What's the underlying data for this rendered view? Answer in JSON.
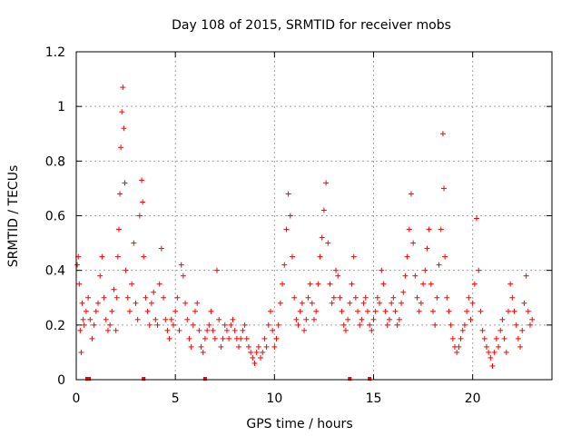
{
  "chart_data": {
    "type": "scatter",
    "title": "Day 108 of 2015, SRMTID for receiver mobs",
    "xlabel": "GPS time / hours",
    "ylabel": "SRMTID / TECUs",
    "xlim": [
      0,
      24
    ],
    "ylim": [
      0,
      1.2
    ],
    "x_ticks": [
      0,
      5,
      10,
      15,
      20
    ],
    "x_tick_labels": [
      "0",
      "5",
      "10",
      "15",
      "20"
    ],
    "y_ticks": [
      0,
      0.2,
      0.4,
      0.6,
      0.8,
      1.0,
      1.2
    ],
    "y_tick_labels": [
      "0",
      "0.2",
      "0.4",
      "0.6",
      "0.8",
      "1",
      "1.2"
    ],
    "grid": true,
    "marker": "+",
    "color": "#ff0000",
    "zero_markers": [
      0.55,
      0.65,
      3.4,
      6.5,
      13.8,
      14.8
    ],
    "series": [
      {
        "name": "SRMTID",
        "points": [
          [
            0.05,
            0.42
          ],
          [
            0.1,
            0.45
          ],
          [
            0.15,
            0.35
          ],
          [
            0.2,
            0.18
          ],
          [
            0.25,
            0.1
          ],
          [
            0.3,
            0.28
          ],
          [
            0.35,
            0.22
          ],
          [
            0.4,
            0.2
          ],
          [
            0.5,
            0.25
          ],
          [
            0.6,
            0.3
          ],
          [
            0.7,
            0.22
          ],
          [
            0.8,
            0.15
          ],
          [
            0.9,
            0.2
          ],
          [
            1.0,
            0.25
          ],
          [
            1.1,
            0.28
          ],
          [
            1.2,
            0.38
          ],
          [
            1.3,
            0.45
          ],
          [
            1.4,
            0.3
          ],
          [
            1.5,
            0.22
          ],
          [
            1.6,
            0.18
          ],
          [
            1.7,
            0.2
          ],
          [
            1.8,
            0.25
          ],
          [
            1.9,
            0.33
          ],
          [
            2.0,
            0.18
          ],
          [
            2.05,
            0.3
          ],
          [
            2.1,
            0.45
          ],
          [
            2.15,
            0.55
          ],
          [
            2.2,
            0.68
          ],
          [
            2.25,
            0.85
          ],
          [
            2.3,
            0.98
          ],
          [
            2.35,
            1.07
          ],
          [
            2.4,
            0.92
          ],
          [
            2.45,
            0.72
          ],
          [
            2.5,
            0.4
          ],
          [
            2.6,
            0.3
          ],
          [
            2.7,
            0.25
          ],
          [
            2.8,
            0.35
          ],
          [
            2.9,
            0.5
          ],
          [
            3.0,
            0.28
          ],
          [
            3.1,
            0.22
          ],
          [
            3.2,
            0.6
          ],
          [
            3.3,
            0.73
          ],
          [
            3.35,
            0.65
          ],
          [
            3.4,
            0.45
          ],
          [
            3.5,
            0.3
          ],
          [
            3.6,
            0.25
          ],
          [
            3.7,
            0.2
          ],
          [
            3.8,
            0.28
          ],
          [
            3.9,
            0.32
          ],
          [
            4.0,
            0.22
          ],
          [
            4.1,
            0.2
          ],
          [
            4.2,
            0.35
          ],
          [
            4.3,
            0.48
          ],
          [
            4.4,
            0.3
          ],
          [
            4.5,
            0.22
          ],
          [
            4.6,
            0.18
          ],
          [
            4.7,
            0.15
          ],
          [
            4.8,
            0.22
          ],
          [
            4.9,
            0.2
          ],
          [
            5.0,
            0.25
          ],
          [
            5.1,
            0.3
          ],
          [
            5.2,
            0.18
          ],
          [
            5.3,
            0.42
          ],
          [
            5.4,
            0.38
          ],
          [
            5.5,
            0.28
          ],
          [
            5.6,
            0.22
          ],
          [
            5.7,
            0.15
          ],
          [
            5.8,
            0.12
          ],
          [
            5.9,
            0.2
          ],
          [
            6.0,
            0.25
          ],
          [
            6.1,
            0.28
          ],
          [
            6.2,
            0.18
          ],
          [
            6.3,
            0.12
          ],
          [
            6.4,
            0.1
          ],
          [
            6.5,
            0.15
          ],
          [
            6.6,
            0.18
          ],
          [
            6.7,
            0.2
          ],
          [
            6.8,
            0.25
          ],
          [
            6.9,
            0.18
          ],
          [
            7.0,
            0.15
          ],
          [
            7.1,
            0.4
          ],
          [
            7.2,
            0.22
          ],
          [
            7.3,
            0.12
          ],
          [
            7.4,
            0.15
          ],
          [
            7.5,
            0.2
          ],
          [
            7.6,
            0.18
          ],
          [
            7.7,
            0.15
          ],
          [
            7.8,
            0.2
          ],
          [
            7.9,
            0.22
          ],
          [
            8.0,
            0.18
          ],
          [
            8.1,
            0.15
          ],
          [
            8.2,
            0.12
          ],
          [
            8.3,
            0.15
          ],
          [
            8.4,
            0.18
          ],
          [
            8.5,
            0.2
          ],
          [
            8.6,
            0.15
          ],
          [
            8.7,
            0.12
          ],
          [
            8.8,
            0.1
          ],
          [
            8.9,
            0.08
          ],
          [
            9.0,
            0.06
          ],
          [
            9.1,
            0.1
          ],
          [
            9.2,
            0.12
          ],
          [
            9.3,
            0.08
          ],
          [
            9.4,
            0.1
          ],
          [
            9.5,
            0.15
          ],
          [
            9.6,
            0.12
          ],
          [
            9.7,
            0.2
          ],
          [
            9.8,
            0.25
          ],
          [
            9.9,
            0.18
          ],
          [
            10.0,
            0.12
          ],
          [
            10.1,
            0.15
          ],
          [
            10.2,
            0.2
          ],
          [
            10.3,
            0.28
          ],
          [
            10.4,
            0.35
          ],
          [
            10.5,
            0.42
          ],
          [
            10.6,
            0.55
          ],
          [
            10.7,
            0.68
          ],
          [
            10.8,
            0.6
          ],
          [
            10.9,
            0.45
          ],
          [
            11.0,
            0.3
          ],
          [
            11.1,
            0.22
          ],
          [
            11.2,
            0.2
          ],
          [
            11.3,
            0.25
          ],
          [
            11.4,
            0.28
          ],
          [
            11.5,
            0.18
          ],
          [
            11.6,
            0.22
          ],
          [
            11.7,
            0.3
          ],
          [
            11.8,
            0.35
          ],
          [
            11.9,
            0.28
          ],
          [
            12.0,
            0.22
          ],
          [
            12.1,
            0.25
          ],
          [
            12.2,
            0.35
          ],
          [
            12.3,
            0.45
          ],
          [
            12.4,
            0.52
          ],
          [
            12.5,
            0.62
          ],
          [
            12.6,
            0.72
          ],
          [
            12.7,
            0.5
          ],
          [
            12.8,
            0.35
          ],
          [
            12.9,
            0.28
          ],
          [
            13.0,
            0.3
          ],
          [
            13.1,
            0.4
          ],
          [
            13.2,
            0.38
          ],
          [
            13.3,
            0.3
          ],
          [
            13.4,
            0.25
          ],
          [
            13.5,
            0.2
          ],
          [
            13.6,
            0.18
          ],
          [
            13.7,
            0.22
          ],
          [
            13.8,
            0.28
          ],
          [
            13.9,
            0.35
          ],
          [
            14.0,
            0.45
          ],
          [
            14.1,
            0.3
          ],
          [
            14.2,
            0.25
          ],
          [
            14.3,
            0.2
          ],
          [
            14.4,
            0.22
          ],
          [
            14.5,
            0.28
          ],
          [
            14.6,
            0.3
          ],
          [
            14.7,
            0.25
          ],
          [
            14.8,
            0.2
          ],
          [
            14.9,
            0.18
          ],
          [
            15.0,
            0.22
          ],
          [
            15.1,
            0.25
          ],
          [
            15.2,
            0.3
          ],
          [
            15.3,
            0.28
          ],
          [
            15.4,
            0.4
          ],
          [
            15.5,
            0.35
          ],
          [
            15.6,
            0.25
          ],
          [
            15.7,
            0.2
          ],
          [
            15.8,
            0.22
          ],
          [
            15.9,
            0.28
          ],
          [
            16.0,
            0.3
          ],
          [
            16.1,
            0.25
          ],
          [
            16.2,
            0.2
          ],
          [
            16.3,
            0.22
          ],
          [
            16.4,
            0.28
          ],
          [
            16.5,
            0.32
          ],
          [
            16.6,
            0.38
          ],
          [
            16.7,
            0.45
          ],
          [
            16.8,
            0.55
          ],
          [
            16.9,
            0.68
          ],
          [
            17.0,
            0.5
          ],
          [
            17.1,
            0.38
          ],
          [
            17.2,
            0.3
          ],
          [
            17.3,
            0.25
          ],
          [
            17.4,
            0.28
          ],
          [
            17.5,
            0.35
          ],
          [
            17.6,
            0.4
          ],
          [
            17.7,
            0.48
          ],
          [
            17.8,
            0.55
          ],
          [
            17.9,
            0.35
          ],
          [
            18.0,
            0.25
          ],
          [
            18.1,
            0.2
          ],
          [
            18.2,
            0.3
          ],
          [
            18.3,
            0.42
          ],
          [
            18.4,
            0.55
          ],
          [
            18.5,
            0.9
          ],
          [
            18.55,
            0.7
          ],
          [
            18.6,
            0.45
          ],
          [
            18.7,
            0.3
          ],
          [
            18.8,
            0.25
          ],
          [
            18.9,
            0.2
          ],
          [
            19.0,
            0.15
          ],
          [
            19.1,
            0.12
          ],
          [
            19.2,
            0.1
          ],
          [
            19.3,
            0.12
          ],
          [
            19.4,
            0.15
          ],
          [
            19.5,
            0.18
          ],
          [
            19.6,
            0.2
          ],
          [
            19.7,
            0.25
          ],
          [
            19.8,
            0.3
          ],
          [
            19.9,
            0.22
          ],
          [
            20.0,
            0.28
          ],
          [
            20.1,
            0.35
          ],
          [
            20.2,
            0.59
          ],
          [
            20.3,
            0.4
          ],
          [
            20.4,
            0.25
          ],
          [
            20.5,
            0.18
          ],
          [
            20.6,
            0.15
          ],
          [
            20.7,
            0.12
          ],
          [
            20.8,
            0.1
          ],
          [
            20.9,
            0.08
          ],
          [
            21.0,
            0.05
          ],
          [
            21.1,
            0.1
          ],
          [
            21.2,
            0.15
          ],
          [
            21.3,
            0.12
          ],
          [
            21.4,
            0.18
          ],
          [
            21.5,
            0.22
          ],
          [
            21.6,
            0.15
          ],
          [
            21.7,
            0.1
          ],
          [
            21.8,
            0.25
          ],
          [
            21.9,
            0.35
          ],
          [
            22.0,
            0.3
          ],
          [
            22.1,
            0.25
          ],
          [
            22.2,
            0.2
          ],
          [
            22.3,
            0.15
          ],
          [
            22.4,
            0.12
          ],
          [
            22.5,
            0.18
          ],
          [
            22.6,
            0.28
          ],
          [
            22.7,
            0.38
          ],
          [
            22.8,
            0.25
          ],
          [
            22.9,
            0.2
          ],
          [
            23.0,
            0.22
          ]
        ]
      }
    ]
  }
}
